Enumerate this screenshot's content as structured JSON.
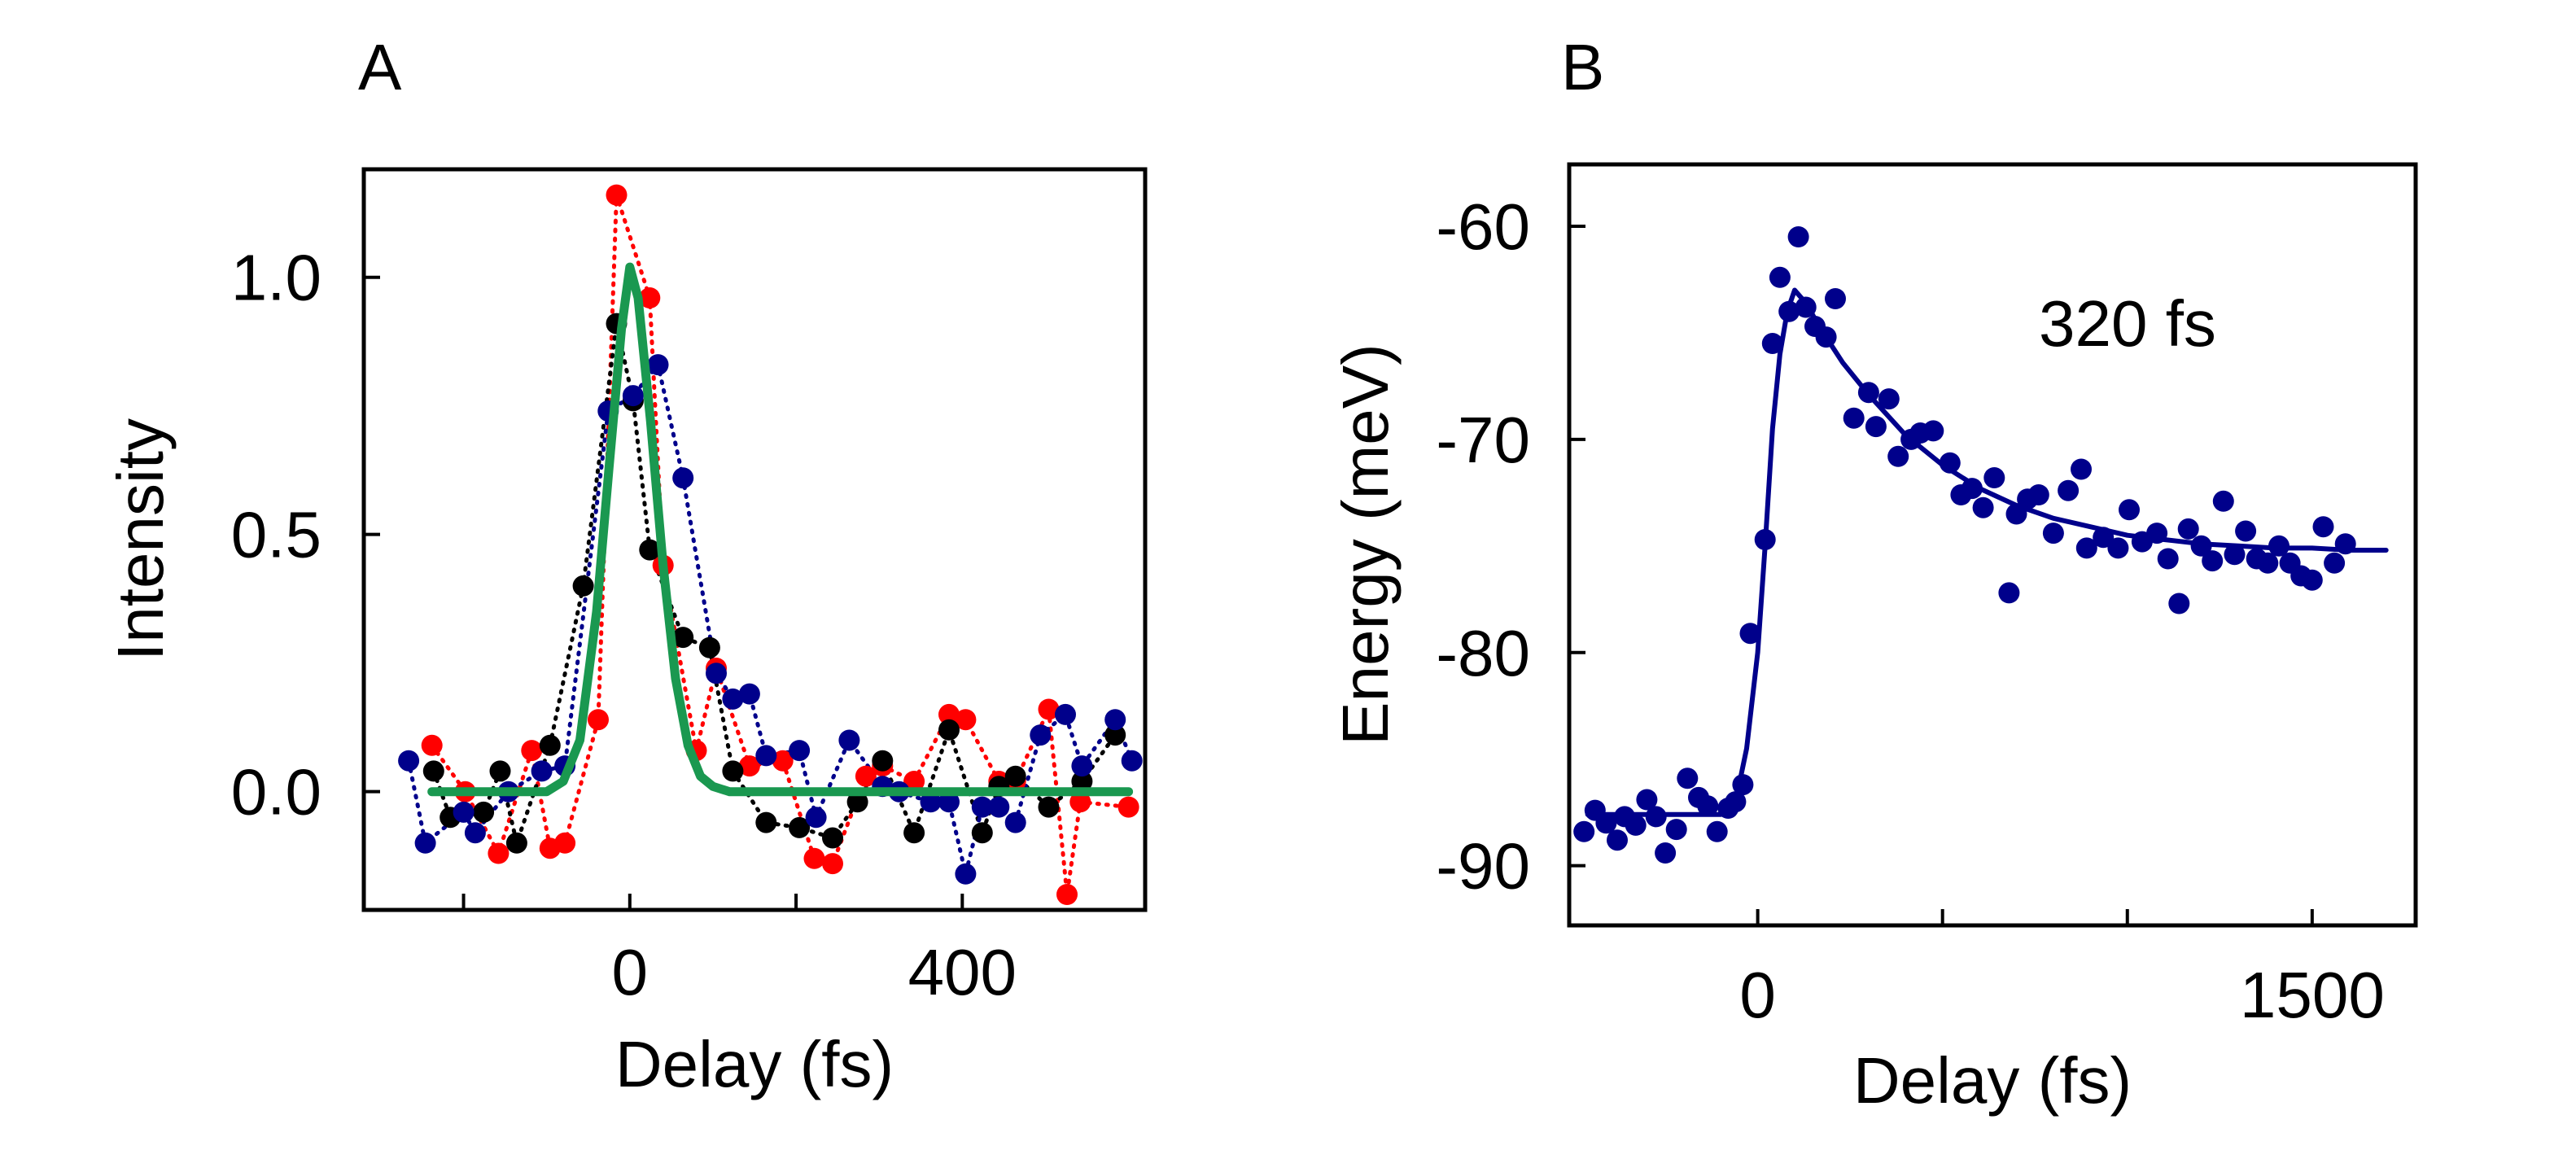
{
  "panels": {
    "a": {
      "label": "A"
    },
    "b": {
      "label": "B"
    }
  },
  "colors": {
    "red": "#ff0000",
    "black": "#000000",
    "blue": "#00008b",
    "fit_green": "#1a9850",
    "fit_blue": "#00008b"
  },
  "chart_data": [
    {
      "panel": "A",
      "type": "scatter",
      "xlabel": "Delay (fs)",
      "ylabel": "Intensity",
      "xlim": [
        -320,
        620
      ],
      "ylim": [
        -0.23,
        1.21
      ],
      "xticks": [
        {
          "value": -200,
          "label": ""
        },
        {
          "value": 0,
          "label": "0"
        },
        {
          "value": 200,
          "label": ""
        },
        {
          "value": 400,
          "label": "400"
        }
      ],
      "yticks": [
        {
          "value": 0.0,
          "label": "0.0"
        },
        {
          "value": 0.5,
          "label": "0.5"
        },
        {
          "value": 1.0,
          "label": "1.0"
        }
      ],
      "grid": false,
      "series": [
        {
          "color": "#ff0000",
          "marker": "circle",
          "line": "dotted",
          "points": [
            [
              -238,
              0.09
            ],
            [
              -198,
              0.0
            ],
            [
              -158,
              -0.12
            ],
            [
              -118,
              0.08
            ],
            [
              -96,
              -0.11
            ],
            [
              -78,
              -0.1
            ],
            [
              -38,
              0.14
            ],
            [
              -16,
              1.16
            ],
            [
              24,
              0.96
            ],
            [
              40,
              0.44
            ],
            [
              80,
              0.08
            ],
            [
              104,
              0.24
            ],
            [
              144,
              0.05
            ],
            [
              184,
              0.06
            ],
            [
              222,
              -0.13
            ],
            [
              244,
              -0.14
            ],
            [
              284,
              0.03
            ],
            [
              304,
              0.05
            ],
            [
              342,
              0.02
            ],
            [
              384,
              0.15
            ],
            [
              404,
              0.14
            ],
            [
              444,
              0.02
            ],
            [
              464,
              0.02
            ],
            [
              504,
              0.16
            ],
            [
              526,
              -0.2
            ],
            [
              542,
              -0.02
            ],
            [
              600,
              -0.03
            ]
          ]
        },
        {
          "color": "#000000",
          "marker": "circle",
          "line": "dotted",
          "points": [
            [
              -236,
              0.04
            ],
            [
              -216,
              -0.05
            ],
            [
              -176,
              -0.04
            ],
            [
              -156,
              0.04
            ],
            [
              -136,
              -0.1
            ],
            [
              -96,
              0.09
            ],
            [
              -56,
              0.4
            ],
            [
              -16,
              0.91
            ],
            [
              4,
              0.76
            ],
            [
              24,
              0.47
            ],
            [
              64,
              0.3
            ],
            [
              96,
              0.28
            ],
            [
              124,
              0.04
            ],
            [
              164,
              -0.06
            ],
            [
              204,
              -0.07
            ],
            [
              244,
              -0.09
            ],
            [
              274,
              -0.02
            ],
            [
              304,
              0.06
            ],
            [
              342,
              -0.08
            ],
            [
              384,
              0.12
            ],
            [
              424,
              -0.08
            ],
            [
              444,
              0.01
            ],
            [
              464,
              0.03
            ],
            [
              504,
              -0.03
            ],
            [
              544,
              0.02
            ],
            [
              584,
              0.11
            ]
          ]
        },
        {
          "color": "#00008b",
          "marker": "circle",
          "line": "dotted",
          "points": [
            [
              -266,
              0.06
            ],
            [
              -246,
              -0.1
            ],
            [
              -200,
              -0.04
            ],
            [
              -186,
              -0.08
            ],
            [
              -146,
              0.0
            ],
            [
              -106,
              0.04
            ],
            [
              -78,
              0.05
            ],
            [
              -26,
              0.74
            ],
            [
              4,
              0.77
            ],
            [
              34,
              0.83
            ],
            [
              64,
              0.61
            ],
            [
              104,
              0.23
            ],
            [
              124,
              0.18
            ],
            [
              144,
              0.19
            ],
            [
              164,
              0.07
            ],
            [
              204,
              0.08
            ],
            [
              224,
              -0.05
            ],
            [
              264,
              0.1
            ],
            [
              304,
              0.01
            ],
            [
              324,
              0.0
            ],
            [
              362,
              -0.02
            ],
            [
              384,
              -0.02
            ],
            [
              404,
              -0.16
            ],
            [
              424,
              -0.03
            ],
            [
              444,
              -0.03
            ],
            [
              464,
              -0.06
            ],
            [
              494,
              0.11
            ],
            [
              524,
              0.15
            ],
            [
              544,
              0.05
            ],
            [
              584,
              0.14
            ],
            [
              604,
              0.06
            ]
          ]
        }
      ],
      "fit": {
        "color": "#1a9850",
        "points": [
          [
            -238,
            0.0
          ],
          [
            -100,
            0.0
          ],
          [
            -80,
            0.02
          ],
          [
            -60,
            0.1
          ],
          [
            -40,
            0.35
          ],
          [
            -25,
            0.63
          ],
          [
            -10,
            0.9
          ],
          [
            0,
            1.02
          ],
          [
            10,
            0.96
          ],
          [
            25,
            0.72
          ],
          [
            40,
            0.44
          ],
          [
            55,
            0.22
          ],
          [
            70,
            0.09
          ],
          [
            85,
            0.03
          ],
          [
            100,
            0.01
          ],
          [
            120,
            0.0
          ],
          [
            600,
            0.0
          ]
        ]
      }
    },
    {
      "panel": "B",
      "type": "scatter",
      "xlabel": "Delay (fs)",
      "ylabel": "Energy (meV)",
      "xlim": [
        -510,
        1780
      ],
      "ylim": [
        -92.8,
        -57.1
      ],
      "xticks": [
        {
          "value": 0,
          "label": "0"
        },
        {
          "value": 500,
          "label": ""
        },
        {
          "value": 1000,
          "label": ""
        },
        {
          "value": 1500,
          "label": "1500"
        }
      ],
      "yticks": [
        {
          "value": -90,
          "label": "-90"
        },
        {
          "value": -80,
          "label": "-80"
        },
        {
          "value": -70,
          "label": "-70"
        },
        {
          "value": -60,
          "label": "-60"
        }
      ],
      "grid": false,
      "annotation": "320 fs",
      "series": [
        {
          "color": "#00008b",
          "marker": "circle",
          "line": "none",
          "points": [
            [
              -470,
              -88.4
            ],
            [
              -440,
              -87.4
            ],
            [
              -410,
              -88.0
            ],
            [
              -380,
              -88.8
            ],
            [
              -360,
              -87.7
            ],
            [
              -330,
              -88.1
            ],
            [
              -300,
              -86.9
            ],
            [
              -275,
              -87.7
            ],
            [
              -250,
              -89.4
            ],
            [
              -220,
              -88.3
            ],
            [
              -190,
              -85.9
            ],
            [
              -160,
              -86.8
            ],
            [
              -135,
              -87.2
            ],
            [
              -110,
              -88.4
            ],
            [
              -80,
              -87.3
            ],
            [
              -60,
              -87.0
            ],
            [
              -40,
              -86.2
            ],
            [
              -20,
              -79.1
            ],
            [
              20,
              -74.7
            ],
            [
              40,
              -65.5
            ],
            [
              60,
              -62.4
            ],
            [
              85,
              -64.0
            ],
            [
              110,
              -60.5
            ],
            [
              130,
              -63.8
            ],
            [
              155,
              -64.7
            ],
            [
              185,
              -65.2
            ],
            [
              210,
              -63.4
            ],
            [
              260,
              -69.0
            ],
            [
              300,
              -67.8
            ],
            [
              320,
              -69.4
            ],
            [
              355,
              -68.1
            ],
            [
              380,
              -70.8
            ],
            [
              415,
              -70.0
            ],
            [
              440,
              -69.7
            ],
            [
              475,
              -69.6
            ],
            [
              520,
              -71.1
            ],
            [
              550,
              -72.6
            ],
            [
              580,
              -72.3
            ],
            [
              610,
              -73.2
            ],
            [
              640,
              -71.8
            ],
            [
              680,
              -77.2
            ],
            [
              700,
              -73.5
            ],
            [
              730,
              -72.8
            ],
            [
              760,
              -72.6
            ],
            [
              800,
              -74.4
            ],
            [
              840,
              -72.4
            ],
            [
              875,
              -71.4
            ],
            [
              890,
              -75.1
            ],
            [
              935,
              -74.6
            ],
            [
              975,
              -75.1
            ],
            [
              1005,
              -73.3
            ],
            [
              1040,
              -74.8
            ],
            [
              1080,
              -74.4
            ],
            [
              1110,
              -75.6
            ],
            [
              1140,
              -77.7
            ],
            [
              1165,
              -74.2
            ],
            [
              1200,
              -75.0
            ],
            [
              1230,
              -75.7
            ],
            [
              1260,
              -72.9
            ],
            [
              1290,
              -75.4
            ],
            [
              1320,
              -74.3
            ],
            [
              1350,
              -75.6
            ],
            [
              1380,
              -75.8
            ],
            [
              1410,
              -75.0
            ],
            [
              1440,
              -75.8
            ],
            [
              1470,
              -76.4
            ],
            [
              1500,
              -76.6
            ],
            [
              1530,
              -74.1
            ],
            [
              1560,
              -75.8
            ],
            [
              1590,
              -74.9
            ]
          ]
        }
      ],
      "fit": {
        "color": "#00008b",
        "points": [
          [
            -460,
            -87.6
          ],
          [
            -100,
            -87.6
          ],
          [
            -60,
            -87.0
          ],
          [
            -30,
            -84.5
          ],
          [
            0,
            -80.0
          ],
          [
            20,
            -75.0
          ],
          [
            40,
            -69.5
          ],
          [
            60,
            -66.0
          ],
          [
            80,
            -64.0
          ],
          [
            100,
            -63.0
          ],
          [
            130,
            -63.6
          ],
          [
            170,
            -64.8
          ],
          [
            230,
            -66.4
          ],
          [
            300,
            -67.9
          ],
          [
            400,
            -69.8
          ],
          [
            500,
            -71.2
          ],
          [
            600,
            -72.3
          ],
          [
            700,
            -73.1
          ],
          [
            800,
            -73.7
          ],
          [
            900,
            -74.1
          ],
          [
            1000,
            -74.5
          ],
          [
            1100,
            -74.7
          ],
          [
            1200,
            -74.9
          ],
          [
            1300,
            -75.0
          ],
          [
            1400,
            -75.1
          ],
          [
            1500,
            -75.1
          ],
          [
            1600,
            -75.2
          ],
          [
            1700,
            -75.2
          ]
        ]
      }
    }
  ]
}
